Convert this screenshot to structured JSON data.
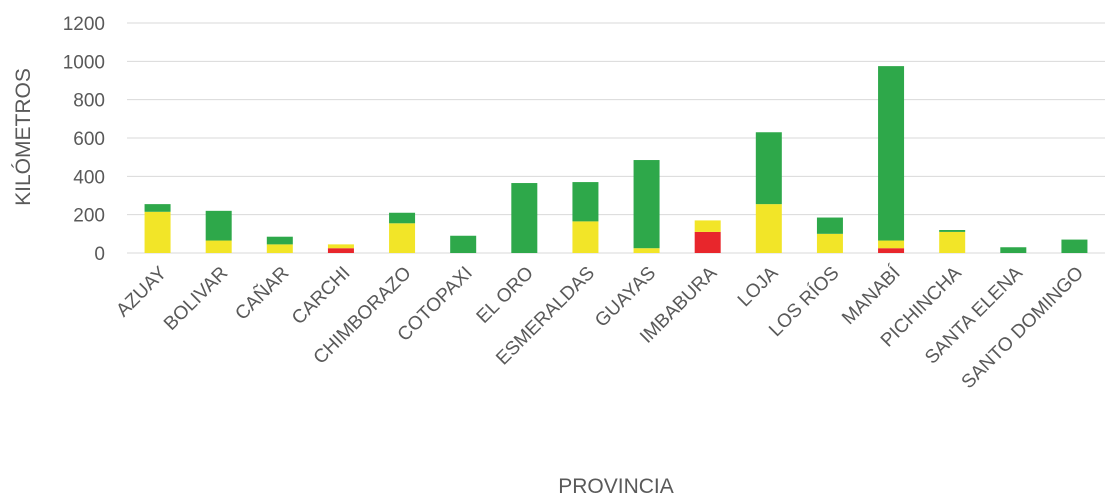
{
  "chart_data": {
    "type": "bar",
    "stacked": true,
    "title": "",
    "xlabel": "PROVINCIA",
    "ylabel": "KILÓMETROS",
    "ylim": [
      0,
      1200
    ],
    "yticks": [
      0,
      200,
      400,
      600,
      800,
      1000,
      1200
    ],
    "grid": true,
    "legend": "none",
    "categories": [
      "AZUAY",
      "BOLIVAR",
      "CAÑAR",
      "CARCHI",
      "CHIMBORAZO",
      "COTOPAXI",
      "EL ORO",
      "ESMERALDAS",
      "GUAYAS",
      "IMBABURA",
      "LOJA",
      "LOS RÍOS",
      "MANABÍ",
      "PICHINCHA",
      "SANTA ELENA",
      "SANTO DOMINGO"
    ],
    "series": [
      {
        "color": "#e8262c",
        "values": [
          0,
          0,
          0,
          25,
          0,
          0,
          0,
          0,
          0,
          110,
          0,
          0,
          25,
          0,
          0,
          0
        ]
      },
      {
        "color": "#f2e528",
        "values": [
          215,
          65,
          45,
          20,
          155,
          0,
          0,
          165,
          25,
          60,
          255,
          100,
          40,
          110,
          0,
          0
        ]
      },
      {
        "color": "#2ea84a",
        "values": [
          40,
          155,
          40,
          0,
          55,
          90,
          365,
          205,
          460,
          0,
          375,
          85,
          910,
          10,
          30,
          70
        ]
      }
    ]
  }
}
